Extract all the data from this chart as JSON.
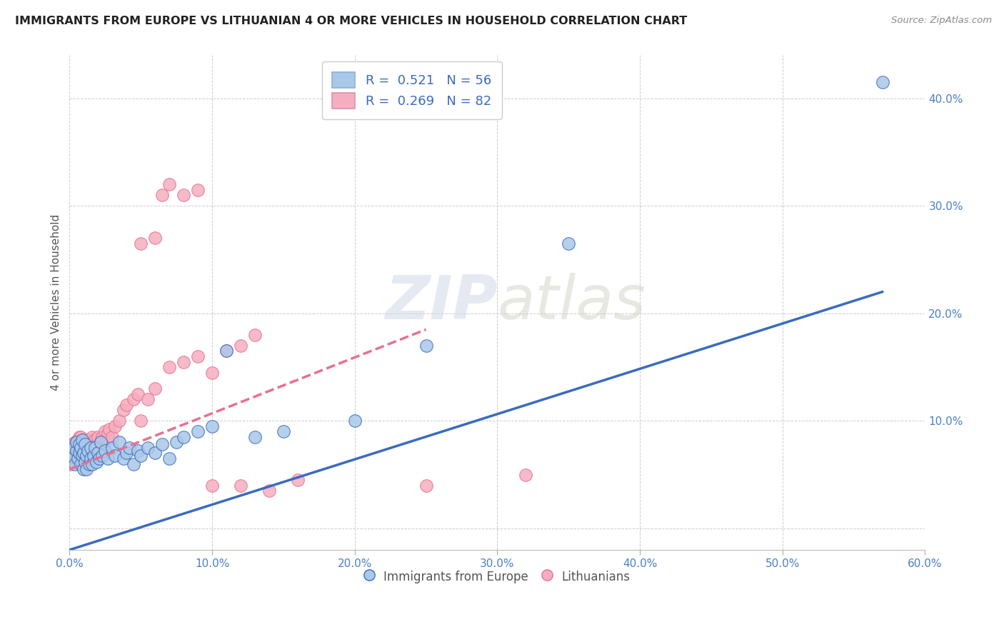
{
  "title": "IMMIGRANTS FROM EUROPE VS LITHUANIAN 4 OR MORE VEHICLES IN HOUSEHOLD CORRELATION CHART",
  "source": "Source: ZipAtlas.com",
  "ylabel": "4 or more Vehicles in Household",
  "xlim": [
    0.0,
    0.6
  ],
  "ylim": [
    -0.02,
    0.44
  ],
  "xticks": [
    0.0,
    0.1,
    0.2,
    0.3,
    0.4,
    0.5,
    0.6
  ],
  "yticks": [
    0.0,
    0.1,
    0.2,
    0.3,
    0.4
  ],
  "xtick_labels": [
    "0.0%",
    "10.0%",
    "20.0%",
    "30.0%",
    "40.0%",
    "50.0%",
    "60.0%"
  ],
  "ytick_labels": [
    "",
    "10.0%",
    "20.0%",
    "30.0%",
    "40.0%"
  ],
  "blue_R": "0.521",
  "blue_N": "56",
  "pink_R": "0.269",
  "pink_N": "82",
  "blue_color": "#aac8e8",
  "pink_color": "#f5aec0",
  "blue_line_color": "#3a6bbf",
  "pink_line_color": "#e87090",
  "background_color": "#ffffff",
  "grid_color": "#cccccc",
  "legend_label_blue": "Immigrants from Europe",
  "legend_label_pink": "Lithuanians",
  "blue_line_x0": 0.0,
  "blue_line_y0": -0.02,
  "blue_line_x1": 0.57,
  "blue_line_y1": 0.22,
  "pink_line_x0": 0.0,
  "pink_line_x1": 0.25,
  "pink_line_y0": 0.055,
  "pink_line_y1": 0.185,
  "blue_scatter_x": [
    0.002,
    0.003,
    0.004,
    0.005,
    0.005,
    0.006,
    0.007,
    0.007,
    0.008,
    0.008,
    0.009,
    0.009,
    0.01,
    0.01,
    0.011,
    0.011,
    0.012,
    0.012,
    0.013,
    0.014,
    0.015,
    0.015,
    0.016,
    0.017,
    0.018,
    0.019,
    0.02,
    0.021,
    0.022,
    0.023,
    0.025,
    0.027,
    0.03,
    0.032,
    0.035,
    0.038,
    0.04,
    0.042,
    0.045,
    0.048,
    0.05,
    0.055,
    0.06,
    0.065,
    0.07,
    0.075,
    0.08,
    0.09,
    0.1,
    0.11,
    0.13,
    0.15,
    0.2,
    0.25,
    0.35,
    0.57
  ],
  "blue_scatter_y": [
    0.068,
    0.075,
    0.06,
    0.072,
    0.08,
    0.065,
    0.07,
    0.078,
    0.06,
    0.075,
    0.068,
    0.082,
    0.055,
    0.07,
    0.062,
    0.078,
    0.055,
    0.068,
    0.072,
    0.06,
    0.065,
    0.075,
    0.06,
    0.068,
    0.075,
    0.062,
    0.07,
    0.065,
    0.08,
    0.068,
    0.072,
    0.065,
    0.075,
    0.068,
    0.08,
    0.065,
    0.07,
    0.075,
    0.06,
    0.072,
    0.068,
    0.075,
    0.07,
    0.078,
    0.065,
    0.08,
    0.085,
    0.09,
    0.095,
    0.165,
    0.085,
    0.09,
    0.1,
    0.17,
    0.265,
    0.415
  ],
  "pink_scatter_x": [
    0.001,
    0.002,
    0.002,
    0.003,
    0.003,
    0.004,
    0.004,
    0.004,
    0.005,
    0.005,
    0.005,
    0.006,
    0.006,
    0.006,
    0.007,
    0.007,
    0.007,
    0.008,
    0.008,
    0.008,
    0.009,
    0.009,
    0.01,
    0.01,
    0.01,
    0.011,
    0.011,
    0.012,
    0.012,
    0.013,
    0.013,
    0.014,
    0.014,
    0.015,
    0.015,
    0.016,
    0.016,
    0.017,
    0.017,
    0.018,
    0.018,
    0.019,
    0.019,
    0.02,
    0.02,
    0.021,
    0.022,
    0.023,
    0.024,
    0.025,
    0.026,
    0.027,
    0.028,
    0.03,
    0.032,
    0.035,
    0.038,
    0.04,
    0.045,
    0.048,
    0.05,
    0.055,
    0.06,
    0.07,
    0.08,
    0.09,
    0.1,
    0.11,
    0.12,
    0.13,
    0.05,
    0.06,
    0.065,
    0.07,
    0.08,
    0.09,
    0.1,
    0.12,
    0.14,
    0.16,
    0.25,
    0.32
  ],
  "pink_scatter_y": [
    0.06,
    0.07,
    0.078,
    0.065,
    0.075,
    0.068,
    0.08,
    0.072,
    0.065,
    0.075,
    0.08,
    0.068,
    0.075,
    0.082,
    0.065,
    0.078,
    0.085,
    0.07,
    0.078,
    0.085,
    0.072,
    0.08,
    0.065,
    0.075,
    0.082,
    0.068,
    0.078,
    0.072,
    0.08,
    0.068,
    0.078,
    0.075,
    0.082,
    0.068,
    0.08,
    0.072,
    0.085,
    0.068,
    0.078,
    0.072,
    0.082,
    0.068,
    0.078,
    0.072,
    0.085,
    0.078,
    0.08,
    0.085,
    0.075,
    0.09,
    0.082,
    0.088,
    0.092,
    0.085,
    0.095,
    0.1,
    0.11,
    0.115,
    0.12,
    0.125,
    0.1,
    0.12,
    0.13,
    0.15,
    0.155,
    0.16,
    0.145,
    0.165,
    0.17,
    0.18,
    0.265,
    0.27,
    0.31,
    0.32,
    0.31,
    0.315,
    0.04,
    0.04,
    0.035,
    0.045,
    0.04,
    0.05
  ]
}
